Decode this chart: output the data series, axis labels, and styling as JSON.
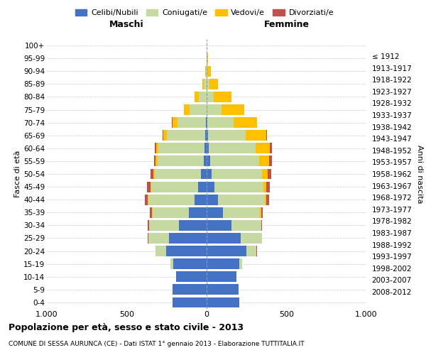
{
  "age_groups": [
    "0-4",
    "5-9",
    "10-14",
    "15-19",
    "20-24",
    "25-29",
    "30-34",
    "35-39",
    "40-44",
    "45-49",
    "50-54",
    "55-59",
    "60-64",
    "65-69",
    "70-74",
    "75-79",
    "80-84",
    "85-89",
    "90-94",
    "95-99",
    "100+"
  ],
  "birth_years": [
    "2008-2012",
    "2003-2007",
    "1998-2002",
    "1993-1997",
    "1988-1992",
    "1983-1987",
    "1978-1982",
    "1973-1977",
    "1968-1972",
    "1963-1967",
    "1958-1962",
    "1953-1957",
    "1948-1952",
    "1943-1947",
    "1938-1942",
    "1933-1937",
    "1928-1932",
    "1923-1927",
    "1918-1922",
    "1913-1917",
    "≤ 1912"
  ],
  "males": {
    "celibi": [
      215,
      215,
      190,
      210,
      255,
      235,
      175,
      110,
      75,
      55,
      35,
      18,
      12,
      8,
      4,
      2,
      0,
      0,
      0,
      0,
      0
    ],
    "coniugati": [
      0,
      0,
      0,
      15,
      65,
      130,
      185,
      230,
      290,
      290,
      290,
      290,
      290,
      240,
      180,
      105,
      50,
      20,
      5,
      2,
      2
    ],
    "vedovi": [
      0,
      0,
      0,
      0,
      0,
      0,
      0,
      2,
      3,
      5,
      8,
      10,
      15,
      25,
      30,
      35,
      25,
      8,
      2,
      0,
      0
    ],
    "divorziati": [
      0,
      0,
      0,
      0,
      2,
      3,
      8,
      12,
      20,
      22,
      18,
      12,
      8,
      3,
      2,
      0,
      0,
      0,
      0,
      0,
      0
    ]
  },
  "females": {
    "nubili": [
      205,
      200,
      185,
      205,
      250,
      215,
      155,
      100,
      70,
      50,
      30,
      20,
      12,
      8,
      4,
      2,
      0,
      0,
      0,
      0,
      0
    ],
    "coniugate": [
      0,
      0,
      0,
      15,
      62,
      130,
      185,
      235,
      295,
      305,
      315,
      310,
      295,
      235,
      165,
      90,
      45,
      18,
      5,
      2,
      0
    ],
    "vedove": [
      0,
      0,
      0,
      0,
      0,
      0,
      2,
      5,
      10,
      18,
      35,
      60,
      90,
      130,
      145,
      145,
      110,
      55,
      20,
      5,
      2
    ],
    "divorziate": [
      0,
      0,
      0,
      0,
      2,
      2,
      6,
      10,
      18,
      22,
      25,
      20,
      10,
      4,
      2,
      0,
      0,
      0,
      0,
      0,
      0
    ]
  },
  "colors": {
    "celibi": "#4472c4",
    "coniugati": "#c5d9a0",
    "vedovi": "#ffc000",
    "divorziati": "#c0504d"
  },
  "title": "Popolazione per età, sesso e stato civile - 2013",
  "subtitle": "COMUNE DI SESSA AURUNCA (CE) - Dati ISTAT 1° gennaio 2013 - Elaborazione TUTTITALIA.IT",
  "xlabel_left": "Maschi",
  "xlabel_right": "Femmine",
  "ylabel": "Fasce di età",
  "ylabel_right": "Anni di nascita",
  "xlim": 1000,
  "xticks": [
    -1000,
    -500,
    0,
    500,
    1000
  ],
  "xticklabels": [
    "1.000",
    "500",
    "0",
    "500",
    "1.000"
  ],
  "legend_labels": [
    "Celibi/Nubili",
    "Coniugati/e",
    "Vedovi/e",
    "Divorziati/e"
  ],
  "background_color": "#ffffff",
  "grid_color": "#cccccc"
}
